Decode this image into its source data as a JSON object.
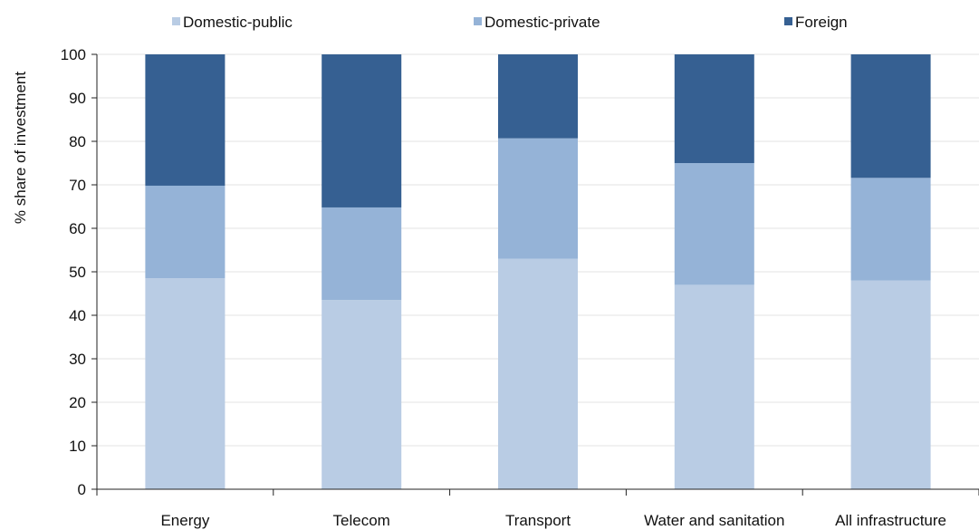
{
  "chart_data": {
    "type": "bar",
    "stacked": true,
    "percent_stacked": true,
    "categories": [
      "Energy",
      "Telecom",
      "Transport",
      "Water and sanitation",
      "All infrastructure"
    ],
    "series": [
      {
        "name": "Domestic-public",
        "color": "#b9cce4",
        "values": [
          48.5,
          43.5,
          53,
          47,
          48
        ]
      },
      {
        "name": "Domestic-private",
        "color": "#95b3d7",
        "values": [
          21.3,
          21.3,
          27.7,
          28,
          23.6
        ]
      },
      {
        "name": "Foreign",
        "color": "#366092",
        "values": [
          30.2,
          35.2,
          19.3,
          25,
          28.4
        ]
      }
    ],
    "ylabel": "% share of investment",
    "ylim": [
      0,
      100
    ],
    "yticks": [
      0,
      10,
      20,
      30,
      40,
      50,
      60,
      70,
      80,
      90,
      100
    ],
    "grid": true,
    "legend_position": "top"
  }
}
